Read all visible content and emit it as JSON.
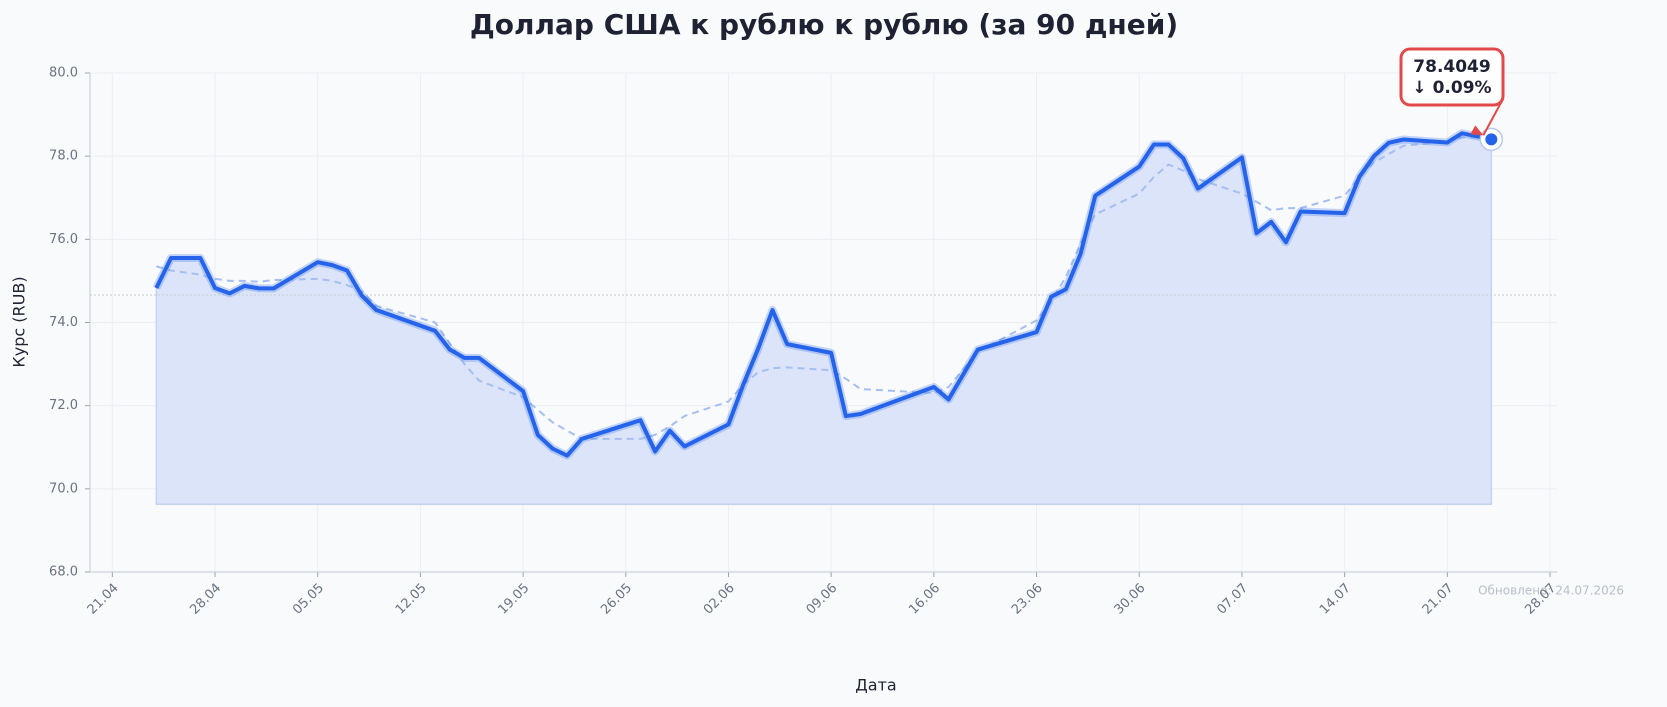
{
  "chart_data": {
    "type": "line",
    "title": "Доллар США к рублю к рублю (за 90 дней)",
    "x_label": "Дата",
    "y_label": "Курс (RUB)",
    "footer": "Обновлено: 24.07.2026",
    "x": [
      "24.04",
      "25.04",
      "27.04",
      "28.04",
      "29.04",
      "30.04",
      "01.05",
      "02.05",
      "05.05",
      "06.05",
      "07.05",
      "08.05",
      "09.05",
      "13.05",
      "14.05",
      "15.05",
      "16.05",
      "19.05",
      "20.05",
      "21.05",
      "22.05",
      "23.05",
      "27.05",
      "28.05",
      "29.05",
      "30.05",
      "02.06",
      "03.06",
      "04.06",
      "05.06",
      "06.06",
      "09.06",
      "10.06",
      "11.06",
      "16.06",
      "17.06",
      "19.06",
      "23.06",
      "24.06",
      "25.06",
      "26.06",
      "27.06",
      "30.06",
      "01.07",
      "02.07",
      "03.07",
      "04.07",
      "07.07",
      "08.07",
      "09.07",
      "10.07",
      "11.07",
      "14.07",
      "15.07",
      "16.07",
      "17.07",
      "18.07",
      "21.07",
      "22.07",
      "23.07",
      "24.07"
    ],
    "series": [
      {
        "color": "#2563eb",
        "values": [
          74.83,
          75.55,
          75.55,
          74.83,
          74.7,
          74.88,
          74.82,
          74.82,
          75.45,
          75.38,
          75.25,
          74.65,
          74.3,
          73.8,
          73.35,
          73.15,
          73.15,
          72.35,
          71.3,
          70.97,
          70.8,
          71.2,
          71.65,
          70.9,
          71.4,
          71.02,
          71.55,
          72.5,
          73.35,
          74.3,
          73.48,
          73.27,
          71.75,
          71.8,
          72.45,
          72.15,
          73.35,
          73.77,
          74.62,
          74.8,
          75.65,
          77.05,
          77.75,
          78.28,
          78.28,
          77.95,
          77.22,
          77.97,
          76.15,
          76.42,
          75.93,
          76.67,
          76.63,
          77.5,
          78.0,
          78.32,
          78.4,
          78.33,
          78.55,
          78.48,
          78.4049
        ]
      },
      {
        "color": "#a5bff0",
        "dashed": true,
        "values": [
          75.35,
          75.25,
          75.15,
          75.05,
          75.0,
          75.0,
          74.98,
          75.02,
          75.05,
          75.0,
          74.9,
          74.75,
          74.4,
          74.0,
          73.5,
          73.0,
          72.6,
          72.2,
          71.9,
          71.6,
          71.4,
          71.2,
          71.2,
          71.3,
          71.5,
          71.75,
          72.1,
          72.5,
          72.8,
          72.9,
          72.92,
          72.85,
          72.65,
          72.4,
          72.3,
          72.45,
          73.3,
          74.05,
          74.5,
          75.1,
          75.9,
          76.6,
          77.1,
          77.5,
          77.8,
          77.65,
          77.45,
          77.1,
          76.9,
          76.7,
          76.75,
          76.75,
          77.05,
          77.5,
          77.85,
          78.05,
          78.25,
          78.35,
          78.45,
          78.45,
          78.4
        ]
      }
    ],
    "area_color": "#dbe4f8",
    "area_baseline": 69.63,
    "mean_line": 74.66,
    "annotation": {
      "lines": [
        "78.4049",
        "↓ 0.09%"
      ],
      "color": "#e24a4a"
    },
    "xlim": [
      "19.04",
      "28.07"
    ],
    "xticks": [
      "21.04",
      "28.04",
      "05.05",
      "12.05",
      "19.05",
      "26.05",
      "02.06",
      "09.06",
      "16.06",
      "23.06",
      "30.06",
      "07.07",
      "14.07",
      "21.07",
      "28.07"
    ],
    "ylim": [
      68,
      80
    ],
    "yticks": [
      {
        "value": 68,
        "label": "68.0"
      },
      {
        "value": 70,
        "label": "70.0"
      },
      {
        "value": 72,
        "label": "72.0"
      },
      {
        "value": 74,
        "label": "74.0"
      },
      {
        "value": 76,
        "label": "76.0"
      },
      {
        "value": 78,
        "label": "78.0"
      },
      {
        "value": 80,
        "label": "80.0"
      }
    ],
    "grid": true
  }
}
